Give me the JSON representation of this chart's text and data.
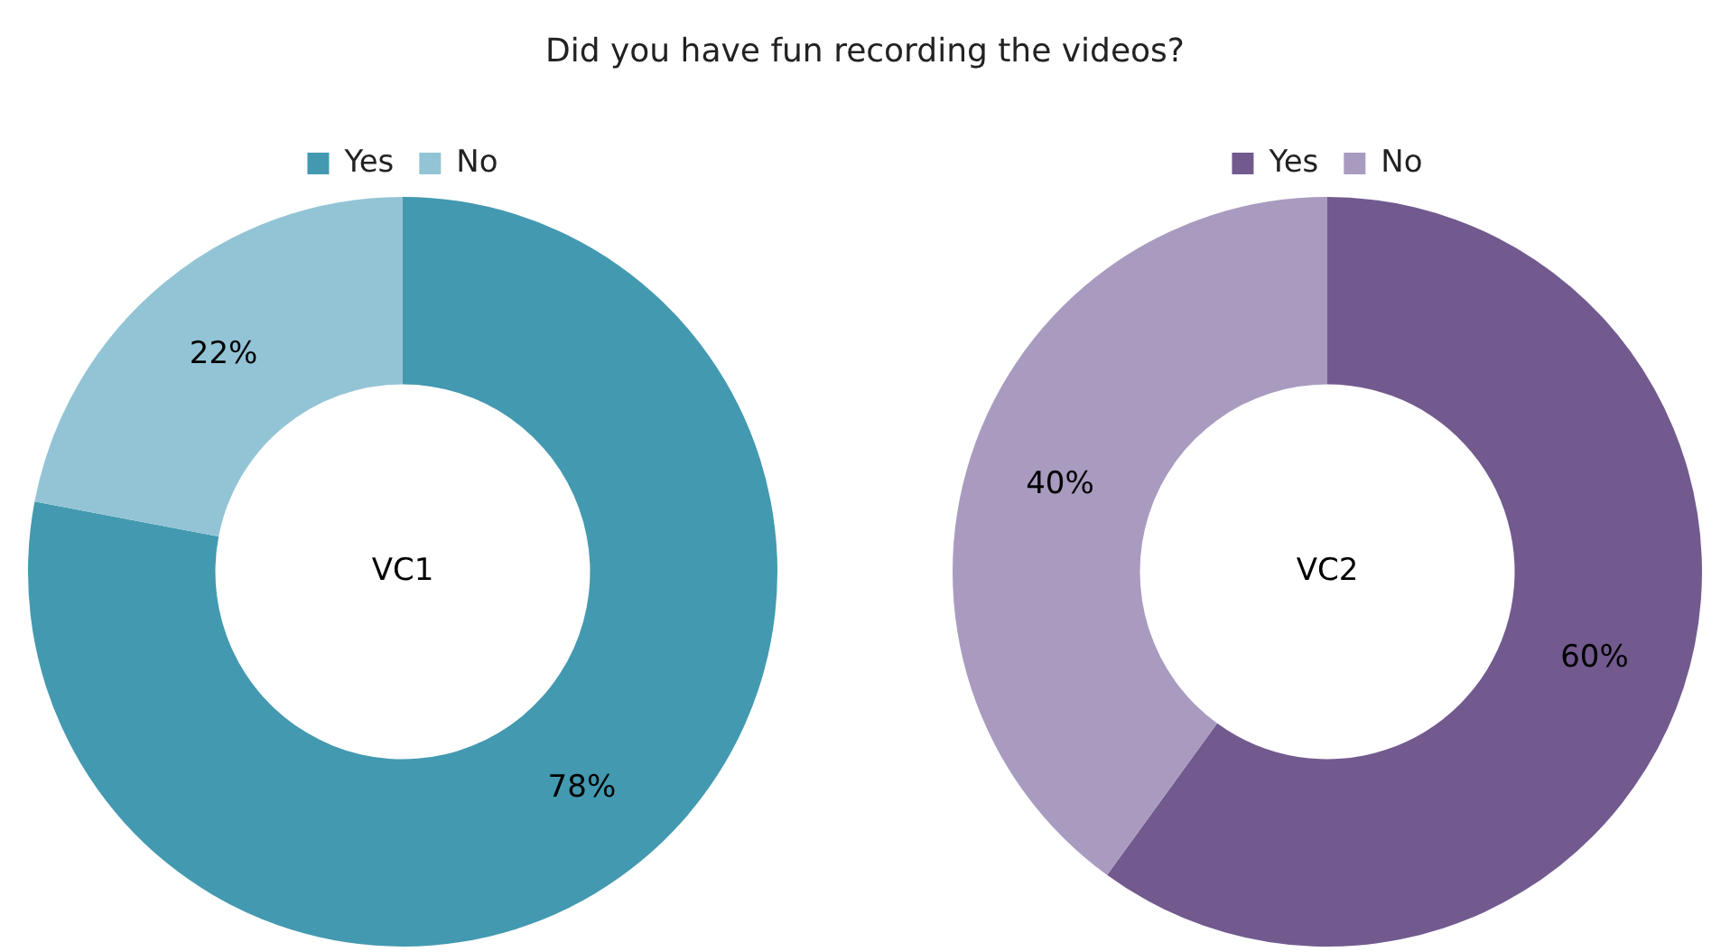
{
  "chart_data": [
    {
      "type": "donut",
      "title": "Did you have fun recording the videos?",
      "categories": [
        "Yes",
        "No"
      ],
      "values": [
        78,
        22
      ],
      "value_labels": [
        "78%",
        "22%"
      ],
      "colors": [
        "#4399b0",
        "#93c4d6"
      ],
      "legend": "top",
      "annotations": [
        "VC1"
      ]
    },
    {
      "type": "donut",
      "categories": [
        "Yes",
        "No"
      ],
      "values": [
        60,
        40
      ],
      "value_labels": [
        "60%",
        "40%"
      ],
      "colors": [
        "#725a8f",
        "#a99bbf"
      ],
      "legend": "top",
      "annotations": [
        "VC2"
      ]
    }
  ]
}
